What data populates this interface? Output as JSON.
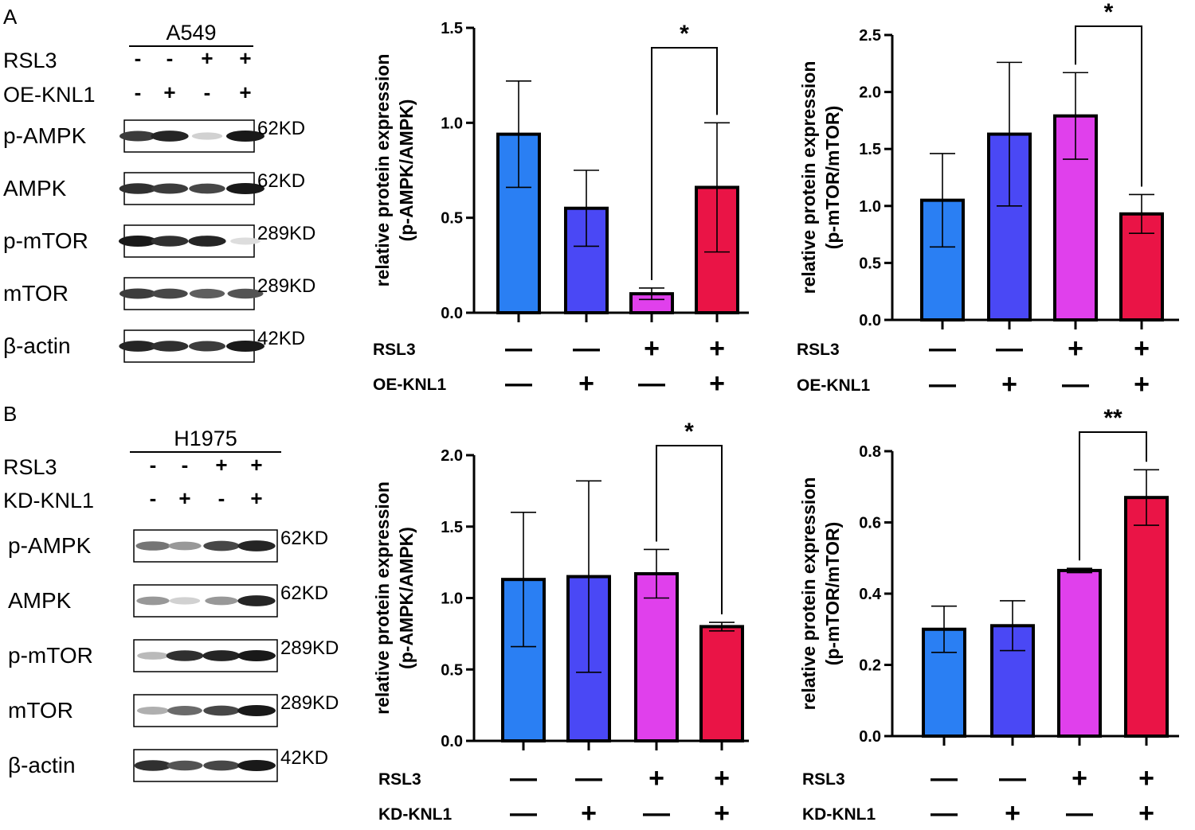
{
  "panels": [
    {
      "letter": "A",
      "cell_line": "A549",
      "treatment_rows": [
        {
          "label": "RSL3",
          "signs": [
            "-",
            "-",
            "+",
            "+"
          ]
        },
        {
          "label": "OE-KNL1",
          "signs": [
            "-",
            "+",
            "-",
            "+"
          ]
        }
      ],
      "bands": [
        {
          "label": "p-AMPK",
          "size": "62KD",
          "intensities": [
            0.85,
            0.95,
            0.2,
            1.0
          ]
        },
        {
          "label": "AMPK",
          "size": "62KD",
          "intensities": [
            0.9,
            0.85,
            0.8,
            1.0
          ]
        },
        {
          "label": "p-mTOR",
          "size": "289KD",
          "intensities": [
            1.0,
            0.9,
            0.95,
            0.15
          ]
        },
        {
          "label": "mTOR",
          "size": "289KD",
          "intensities": [
            0.85,
            0.8,
            0.7,
            0.75
          ]
        },
        {
          "label": "β-actin",
          "size": "42KD",
          "intensities": [
            0.95,
            0.9,
            0.85,
            1.0
          ]
        }
      ]
    },
    {
      "letter": "B",
      "cell_line": "H1975",
      "treatment_rows": [
        {
          "label": "RSL3",
          "signs": [
            "-",
            "-",
            "+",
            "+"
          ]
        },
        {
          "label": "KD-KNL1",
          "signs": [
            "-",
            "+",
            "-",
            "+"
          ]
        }
      ],
      "bands": [
        {
          "label": "p-AMPK",
          "size": "62KD",
          "intensities": [
            0.6,
            0.45,
            0.8,
            0.95
          ]
        },
        {
          "label": "AMPK",
          "size": "62KD",
          "intensities": [
            0.45,
            0.2,
            0.45,
            0.95
          ]
        },
        {
          "label": "p-mTOR",
          "size": "289KD",
          "intensities": [
            0.3,
            0.9,
            0.95,
            1.0
          ]
        },
        {
          "label": "mTOR",
          "size": "289KD",
          "intensities": [
            0.35,
            0.65,
            0.8,
            1.0
          ]
        },
        {
          "label": "β-actin",
          "size": "42KD",
          "intensities": [
            0.9,
            0.75,
            0.8,
            1.0
          ]
        }
      ]
    }
  ],
  "colors": {
    "g1": "#2a7ff3",
    "g2": "#4a48f5",
    "g3": "#e040ec",
    "g4": "#ea1446"
  },
  "chart_data": [
    {
      "type": "bar",
      "ylabel_line1": "relative protein expression",
      "ylabel_line2": "(p-AMPK/AMPK)",
      "ylim": [
        0,
        1.5
      ],
      "yticks": [
        "0.0",
        "0.5",
        "1.0",
        "1.5"
      ],
      "values": [
        0.94,
        0.55,
        0.1,
        0.66
      ],
      "errors": [
        0.28,
        0.2,
        0.03,
        0.34
      ],
      "row1_label": "RSL3",
      "row1_signs": [
        "—",
        "—",
        "+",
        "+"
      ],
      "row2_label": "OE-KNL1",
      "row2_signs": [
        "—",
        "+",
        "—",
        "+"
      ],
      "significance": {
        "from": 2,
        "to": 3,
        "label": "*"
      }
    },
    {
      "type": "bar",
      "ylabel_line1": "relative protein expression",
      "ylabel_line2": "(p-mTOR/mTOR)",
      "ylim": [
        0,
        2.5
      ],
      "yticks": [
        "0.0",
        "0.5",
        "1.0",
        "1.5",
        "2.0",
        "2.5"
      ],
      "values": [
        1.05,
        1.63,
        1.79,
        0.93
      ],
      "errors": [
        0.41,
        0.63,
        0.38,
        0.17
      ],
      "row1_label": "RSL3",
      "row1_signs": [
        "—",
        "—",
        "+",
        "+"
      ],
      "row2_label": "OE-KNL1",
      "row2_signs": [
        "—",
        "+",
        "—",
        "+"
      ],
      "significance": {
        "from": 2,
        "to": 3,
        "label": "*"
      }
    },
    {
      "type": "bar",
      "ylabel_line1": "relative protein expression",
      "ylabel_line2": "(p-AMPK/AMPK)",
      "ylim": [
        0,
        2.0
      ],
      "yticks": [
        "0.0",
        "0.5",
        "1.0",
        "1.5",
        "2.0"
      ],
      "values": [
        1.13,
        1.15,
        1.17,
        0.8
      ],
      "errors": [
        0.47,
        0.67,
        0.17,
        0.03
      ],
      "row1_label": "RSL3",
      "row1_signs": [
        "—",
        "—",
        "+",
        "+"
      ],
      "row2_label": "KD-KNL1",
      "row2_signs": [
        "—",
        "+",
        "—",
        "+"
      ],
      "significance": {
        "from": 2,
        "to": 3,
        "label": "*"
      }
    },
    {
      "type": "bar",
      "ylabel_line1": "relative protein expression",
      "ylabel_line2": "(p-mTOR/mTOR)",
      "ylim": [
        0,
        0.8
      ],
      "yticks": [
        "0.0",
        "0.2",
        "0.4",
        "0.6",
        "0.8"
      ],
      "values": [
        0.3,
        0.31,
        0.465,
        0.67
      ],
      "errors": [
        0.065,
        0.07,
        0.006,
        0.078
      ],
      "row1_label": "RSL3",
      "row1_signs": [
        "—",
        "—",
        "+",
        "+"
      ],
      "row2_label": "KD-KNL1",
      "row2_signs": [
        "—",
        "+",
        "—",
        "+"
      ],
      "significance": {
        "from": 2,
        "to": 3,
        "label": "**"
      }
    }
  ]
}
